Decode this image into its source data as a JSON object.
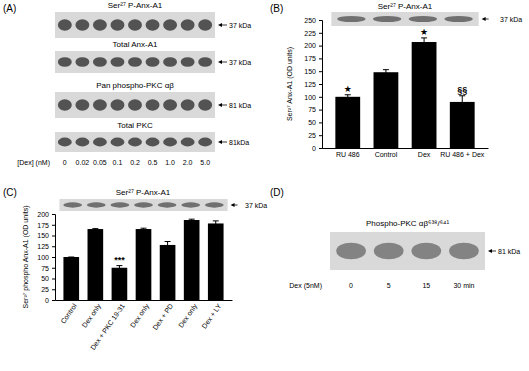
{
  "panel_labels": [
    "(A)",
    "(B)",
    "(C)",
    "(D)"
  ],
  "blot_a": {
    "x_label": "[Dex] (nM)",
    "lanes": [
      "0",
      "0.02",
      "0.05",
      "0.1",
      "0.2",
      "0.5",
      "1.0",
      "2.0",
      "5.0"
    ],
    "rows": [
      {
        "label": "Ser²⁷ P-Anx-A1",
        "size": "37 kDa"
      },
      {
        "label": "Total Anx-A1",
        "size": "37 kDa"
      },
      {
        "label": "Pan phospho-PKC αβ",
        "size": "81 kDa"
      },
      {
        "label": "Total PKC",
        "size": "81kDa"
      }
    ]
  },
  "blot_d": {
    "label": "Phospho-PKC αβ⁶³⁸/⁶⁴¹",
    "size": "81 kDa",
    "x_label": "Dex (5nM)",
    "lanes": [
      "0",
      "5",
      "15",
      "30 min"
    ]
  },
  "chart_data": [
    {
      "type": "bar",
      "title": "Ser²⁷ P-Anx-A1",
      "y_label": "Ser²⁷ Anx-A1 (OD units)",
      "blot_size": "37 kDa",
      "categories": [
        "RU 486",
        "Control",
        "Dex",
        "RU 486 + Dex"
      ],
      "values": [
        100,
        148,
        207,
        90
      ],
      "errors": [
        4,
        5,
        8,
        12
      ],
      "annotations": [
        "★",
        null,
        "★",
        "§§"
      ],
      "color": "#000000",
      "ylim": [
        0,
        250
      ],
      "yticks": [
        0,
        25,
        50,
        75,
        100,
        125,
        150,
        175,
        200,
        225,
        250
      ]
    },
    {
      "type": "bar",
      "title": "Ser²⁷ P-Anx-A1",
      "y_label": "Ser²⁷ phospho Anx-A1 (OD units)",
      "blot_size": "37 kDa",
      "categories": [
        "Control",
        "Dex only",
        "Dex + PKC 19-31",
        "Dex only",
        "Dex + PD",
        "Dex only",
        "Dex + LY"
      ],
      "values": [
        100,
        165,
        75,
        165,
        128,
        186,
        178
      ],
      "errors": [
        0,
        1,
        5,
        2,
        8,
        2,
        6
      ],
      "annotations": [
        null,
        null,
        "***",
        null,
        null,
        null,
        null
      ],
      "color": "#000000",
      "ylim": [
        0,
        200
      ],
      "yticks": [
        0,
        25,
        50,
        75,
        100,
        125,
        150,
        175,
        200
      ]
    }
  ]
}
